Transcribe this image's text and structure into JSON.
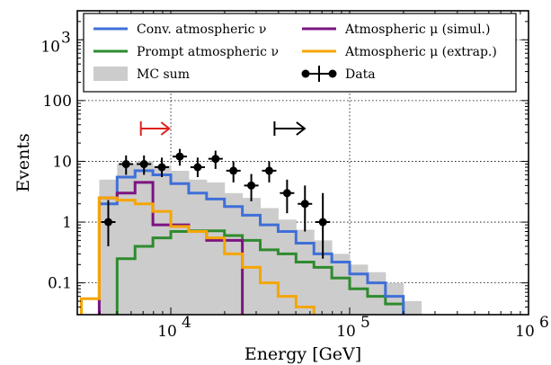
{
  "chart_data": {
    "type": "step-histogram",
    "xlabel": "Energy [GeV]",
    "ylabel": "Events",
    "xscale": "log",
    "yscale": "log",
    "xlim": [
      3000,
      1000000
    ],
    "ylim": [
      0.03,
      3000
    ],
    "grid": true,
    "legend_position": "top",
    "x_ticks": [
      {
        "value": 10000,
        "label_base": "10",
        "label_exp": "4"
      },
      {
        "value": 100000,
        "label_base": "10",
        "label_exp": "5"
      },
      {
        "value": 1000000,
        "label_base": "10",
        "label_exp": "6"
      }
    ],
    "y_ticks": [
      {
        "value": 0.1,
        "label": "0.1"
      },
      {
        "value": 1,
        "label": "1"
      },
      {
        "value": 10,
        "label": "10"
      },
      {
        "value": 100,
        "label": "100"
      }
    ],
    "y_tick_top": {
      "value": 1000,
      "label_base": "10",
      "label_exp": "3"
    },
    "bin_edges": [
      3160,
      3980,
      5010,
      6310,
      7940,
      10000,
      12590,
      15850,
      19950,
      25120,
      31620,
      39810,
      50120,
      63100,
      79430,
      100000,
      125900,
      158500,
      199500,
      251200
    ],
    "series": [
      {
        "name": "Conv. atmospheric ν",
        "color": "#3f6fd8",
        "kind": "step",
        "values": [
          null,
          2.0,
          5.5,
          7.0,
          6.0,
          4.3,
          3.0,
          2.4,
          1.8,
          1.3,
          0.9,
          0.7,
          0.45,
          0.3,
          0.22,
          0.14,
          0.1,
          0.06,
          null
        ]
      },
      {
        "name": "Prompt atmospheric ν",
        "color": "#2e8b2e",
        "kind": "step",
        "values": [
          null,
          null,
          0.25,
          0.4,
          0.55,
          0.7,
          0.72,
          0.72,
          0.6,
          0.5,
          0.35,
          0.3,
          0.22,
          0.18,
          0.12,
          0.08,
          0.06,
          0.045,
          null
        ]
      },
      {
        "name": "Atmospheric μ (simul.)",
        "color": "#7b1480",
        "kind": "step",
        "values": [
          null,
          2.5,
          3.0,
          4.5,
          0.9,
          0.9,
          0.7,
          0.5,
          0.5,
          null,
          null,
          null,
          null,
          null,
          null,
          null,
          null,
          null,
          null
        ]
      },
      {
        "name": "Atmospheric μ (extrap.)",
        "color": "#f5a500",
        "kind": "step",
        "values": [
          0.055,
          2.5,
          2.3,
          2.0,
          1.5,
          0.85,
          0.7,
          0.55,
          0.3,
          0.18,
          0.1,
          0.06,
          0.04,
          null,
          null,
          null,
          null,
          null,
          null
        ]
      },
      {
        "name": "MC sum",
        "color": "#cccccc",
        "kind": "fill",
        "values": [
          null,
          5.0,
          9.0,
          10.0,
          8.5,
          7.0,
          5.0,
          4.5,
          3.0,
          2.5,
          1.7,
          1.1,
          0.75,
          0.5,
          0.3,
          0.2,
          0.15,
          0.1,
          0.05
        ]
      },
      {
        "name": "Data",
        "color": "#000000",
        "kind": "errorbar",
        "points": [
          {
            "x": 4470,
            "y": 1,
            "ylo": 0.4,
            "yhi": 2.3
          },
          {
            "x": 5620,
            "y": 9,
            "ylo": 6,
            "yhi": 12.5
          },
          {
            "x": 7080,
            "y": 9,
            "ylo": 6,
            "yhi": 12.5
          },
          {
            "x": 8910,
            "y": 8,
            "ylo": 5.5,
            "yhi": 11.5
          },
          {
            "x": 11220,
            "y": 12,
            "ylo": 8.5,
            "yhi": 16
          },
          {
            "x": 14130,
            "y": 8,
            "ylo": 5.5,
            "yhi": 11.5
          },
          {
            "x": 17780,
            "y": 11,
            "ylo": 7.5,
            "yhi": 15
          },
          {
            "x": 22390,
            "y": 7,
            "ylo": 4.5,
            "yhi": 10
          },
          {
            "x": 28180,
            "y": 4,
            "ylo": 2.2,
            "yhi": 6.2
          },
          {
            "x": 35480,
            "y": 7,
            "ylo": 4.5,
            "yhi": 10
          },
          {
            "x": 44670,
            "y": 3,
            "ylo": 1.4,
            "yhi": 5
          },
          {
            "x": 56230,
            "y": 2,
            "ylo": 0.7,
            "yhi": 4
          },
          {
            "x": 70790,
            "y": 1,
            "ylo": 0.25,
            "yhi": 3
          }
        ]
      }
    ],
    "annotations": [
      {
        "kind": "arrow",
        "color": "#e02020",
        "x_from": 6800,
        "x_to": 9800,
        "y": 143
      },
      {
        "kind": "arrow",
        "color": "#000000",
        "x_from": 38000,
        "x_to": 56000,
        "y": 143
      }
    ],
    "legend": {
      "left": [
        {
          "label": "Conv. atmospheric ν",
          "symbol": "line",
          "color": "#3f6fd8"
        },
        {
          "label": "Prompt atmospheric ν",
          "symbol": "line",
          "color": "#2e8b2e"
        },
        {
          "label": "MC sum",
          "symbol": "patch",
          "color": "#cccccc"
        }
      ],
      "right": [
        {
          "label": "Atmospheric μ (simul.)",
          "symbol": "line",
          "color": "#7b1480"
        },
        {
          "label": "Atmospheric μ (extrap.)",
          "symbol": "line",
          "color": "#f5a500"
        },
        {
          "label": "Data",
          "symbol": "errorbar",
          "color": "#000000"
        }
      ]
    }
  }
}
